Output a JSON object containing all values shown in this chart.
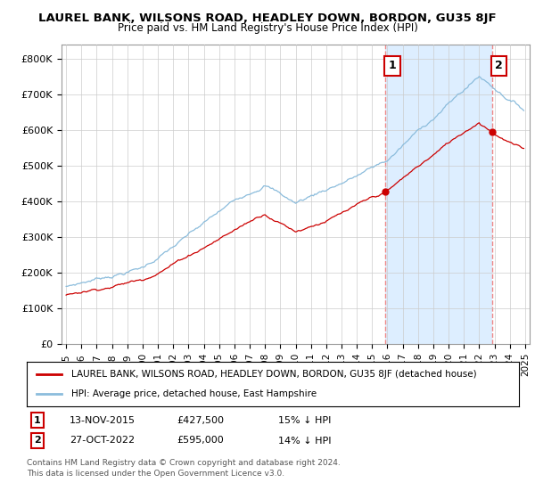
{
  "title": "LAUREL BANK, WILSONS ROAD, HEADLEY DOWN, BORDON, GU35 8JF",
  "subtitle": "Price paid vs. HM Land Registry's House Price Index (HPI)",
  "legend_line1": "LAUREL BANK, WILSONS ROAD, HEADLEY DOWN, BORDON, GU35 8JF (detached house)",
  "legend_line2": "HPI: Average price, detached house, East Hampshire",
  "ylabel_ticks": [
    "£0",
    "£100K",
    "£200K",
    "£300K",
    "£400K",
    "£500K",
    "£600K",
    "£700K",
    "£800K"
  ],
  "ytick_values": [
    0,
    100000,
    200000,
    300000,
    400000,
    500000,
    600000,
    700000,
    800000
  ],
  "ylim": [
    0,
    840000
  ],
  "xlim_start": 1994.7,
  "xlim_end": 2025.3,
  "sale1": {
    "year": 2015.87,
    "price": 427500,
    "label": "1",
    "date": "13-NOV-2015",
    "pct": "15%"
  },
  "sale2": {
    "year": 2022.83,
    "price": 595000,
    "label": "2",
    "date": "27-OCT-2022",
    "pct": "14%"
  },
  "note1": "Contains HM Land Registry data © Crown copyright and database right 2024.",
  "note2": "This data is licensed under the Open Government Licence v3.0.",
  "red_color": "#cc0000",
  "blue_color": "#8bbcdc",
  "shade_color": "#ddeeff",
  "vline_color": "#ee8888",
  "background_color": "#ffffff",
  "grid_color": "#cccccc"
}
